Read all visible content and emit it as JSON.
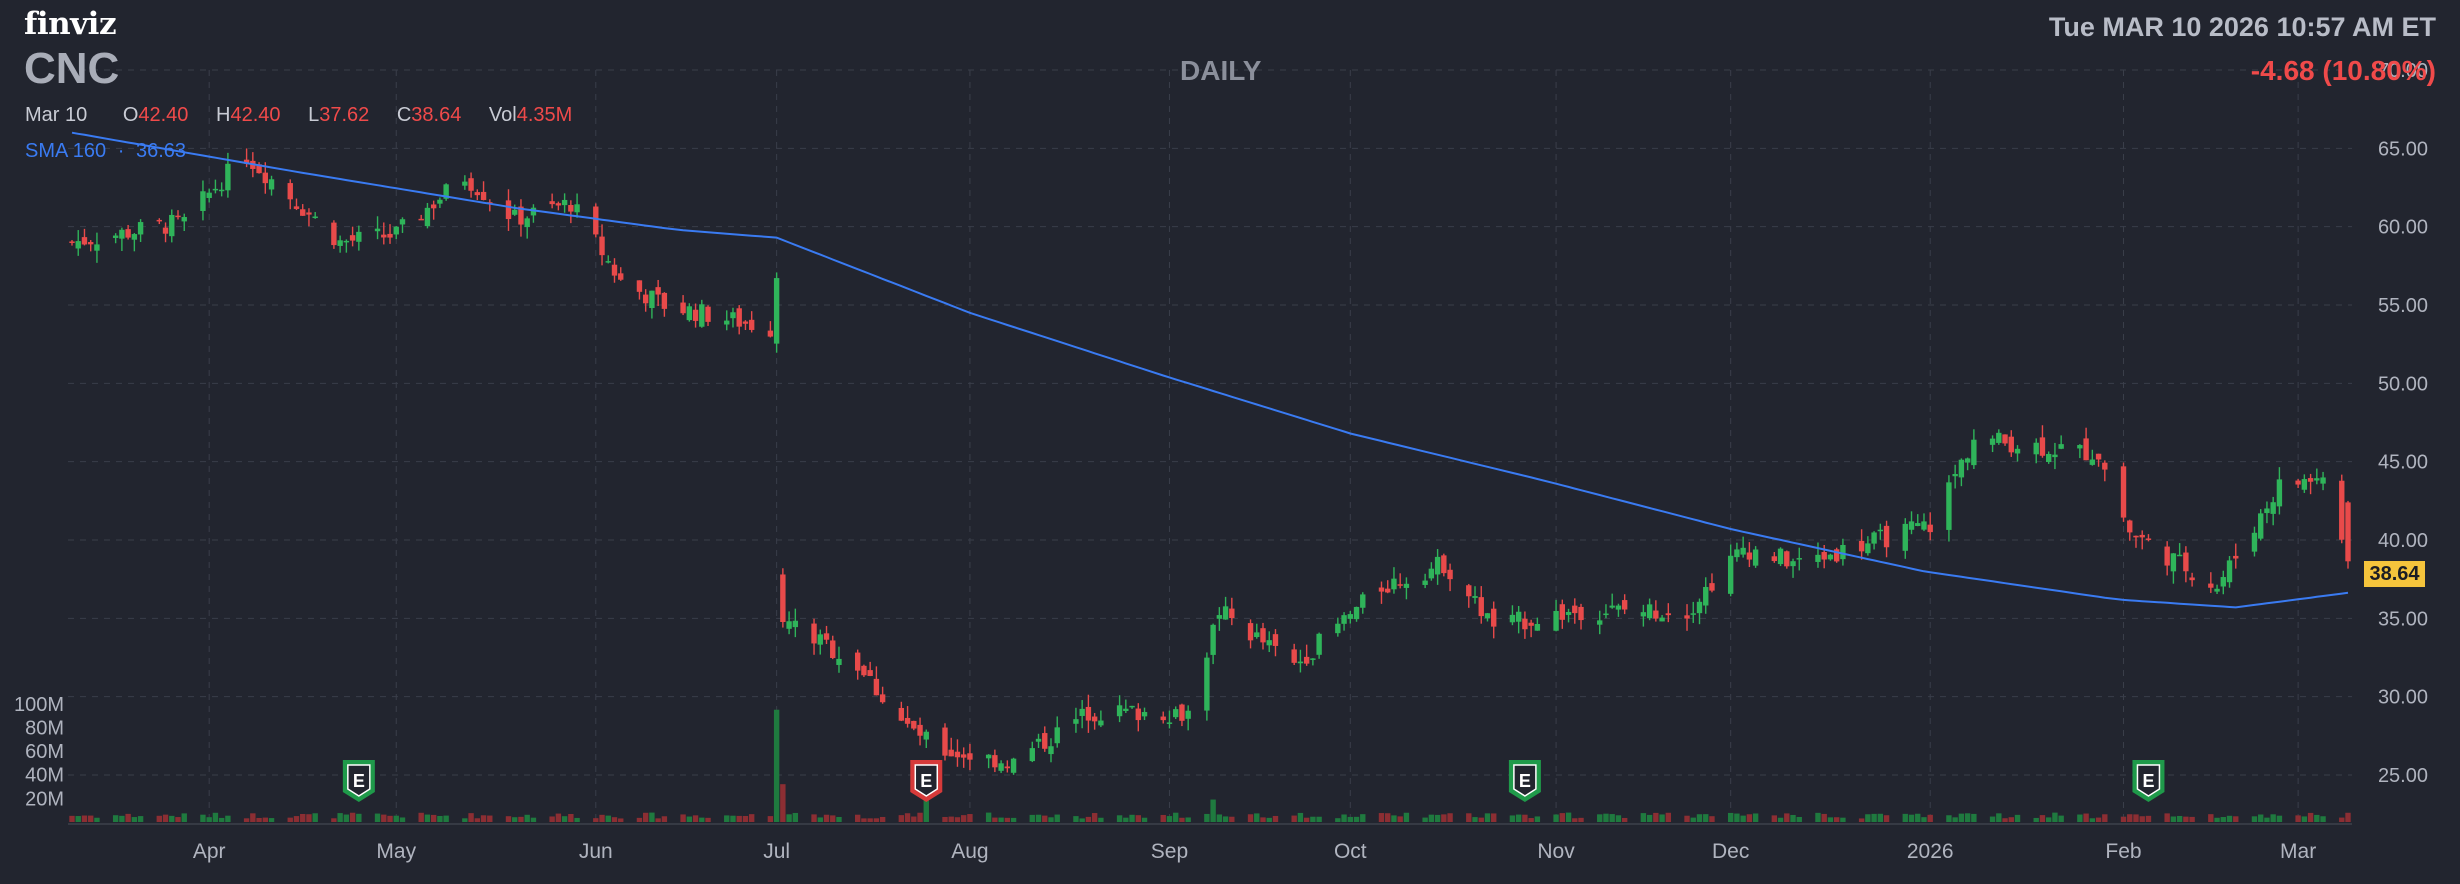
{
  "header": {
    "logo": "finviz",
    "ticker": "CNC",
    "timeframe": "DAILY",
    "datetime": "Tue MAR 10 2026 10:57 AM ET",
    "change": "-4.68 (10.80%)"
  },
  "ohlc": {
    "date": "Mar 10",
    "open_label": "O",
    "open": "42.40",
    "high_label": "H",
    "high": "42.40",
    "low_label": "L",
    "low": "37.62",
    "close_label": "C",
    "close": "38.64",
    "vol_label": "Vol",
    "vol": "4.35M"
  },
  "sma": {
    "label": "SMA 160",
    "sep": "·",
    "value": "36.63"
  },
  "last_price_tag": "38.64",
  "colors": {
    "up": "#2fb45a",
    "down": "#e84a4a",
    "sma": "#3a7bf2",
    "grid": "#3a3e4a",
    "text": "#b0b4bf",
    "volume_up": "#1f7a3f",
    "volume_down": "#8c2e33",
    "tag": "#f5c43c"
  },
  "earnings_marker": {
    "label": "E",
    "icon": "earnings-shield-icon"
  },
  "chart_data": {
    "type": "candlestick",
    "price_axis": {
      "ticks": [
        "70.00",
        "65.00",
        "60.00",
        "55.00",
        "50.00",
        "45.00",
        "40.00",
        "35.00",
        "30.00",
        "25.00"
      ],
      "ylim": [
        22,
        70
      ]
    },
    "volume_axis": {
      "ticks": [
        "100M",
        "80M",
        "60M",
        "40M",
        "20M"
      ],
      "ylim": [
        0,
        110000000
      ]
    },
    "x_labels": [
      "Apr",
      "May",
      "Jun",
      "Jul",
      "Aug",
      "Sep",
      "Oct",
      "Nov",
      "Dec",
      "2026",
      "Feb",
      "Mar"
    ],
    "earnings": [
      {
        "date": "2025-04-25",
        "result": "beat"
      },
      {
        "date": "2025-07-25",
        "result": "miss"
      },
      {
        "date": "2025-10-29",
        "result": "beat"
      },
      {
        "date": "2026-02-06",
        "result": "beat"
      }
    ],
    "key_points": [
      {
        "date": "2025-03-10",
        "close": 59.0
      },
      {
        "date": "2025-03-28",
        "close": 60.3
      },
      {
        "date": "2025-04-03",
        "close": 63.0
      },
      {
        "date": "2025-04-07",
        "close": 64.5
      },
      {
        "date": "2025-04-22",
        "close": 59.0
      },
      {
        "date": "2025-05-01",
        "close": 59.5
      },
      {
        "date": "2025-05-12",
        "close": 63.2
      },
      {
        "date": "2025-05-20",
        "close": 60.5
      },
      {
        "date": "2025-05-29",
        "close": 61.5
      },
      {
        "date": "2025-06-06",
        "close": 56.5
      },
      {
        "date": "2025-06-13",
        "close": 55.0
      },
      {
        "date": "2025-06-30",
        "close": 53.5
      },
      {
        "date": "2025-07-01",
        "close": 57.0
      },
      {
        "date": "2025-07-02",
        "close": 35.0
      },
      {
        "date": "2025-07-14",
        "close": 32.0
      },
      {
        "date": "2025-07-22",
        "close": 28.0
      },
      {
        "date": "2025-07-28",
        "close": 26.5
      },
      {
        "date": "2025-08-08",
        "close": 25.8
      },
      {
        "date": "2025-08-20",
        "close": 29.0
      },
      {
        "date": "2025-09-05",
        "close": 29.0
      },
      {
        "date": "2025-09-10",
        "close": 35.5
      },
      {
        "date": "2025-09-22",
        "close": 32.0
      },
      {
        "date": "2025-10-06",
        "close": 37.0
      },
      {
        "date": "2025-10-16",
        "close": 38.5
      },
      {
        "date": "2025-10-24",
        "close": 34.5
      },
      {
        "date": "2025-11-07",
        "close": 35.5
      },
      {
        "date": "2025-11-24",
        "close": 35.5
      },
      {
        "date": "2025-12-03",
        "close": 39.5
      },
      {
        "date": "2025-12-12",
        "close": 38.5
      },
      {
        "date": "2026-01-02",
        "close": 41.0
      },
      {
        "date": "2026-01-09",
        "close": 46.5
      },
      {
        "date": "2026-01-29",
        "close": 45.5
      },
      {
        "date": "2026-02-03",
        "close": 40.5
      },
      {
        "date": "2026-02-11",
        "close": 38.5
      },
      {
        "date": "2026-02-17",
        "close": 37.0
      },
      {
        "date": "2026-02-27",
        "close": 43.5
      },
      {
        "date": "2026-03-06",
        "close": 44.0
      },
      {
        "date": "2026-03-10",
        "close": 38.64
      }
    ],
    "sma160": [
      {
        "date": "2025-03-10",
        "value": 66.0
      },
      {
        "date": "2025-04-15",
        "value": 63.5
      },
      {
        "date": "2025-05-20",
        "value": 61.2
      },
      {
        "date": "2025-06-15",
        "value": 59.8
      },
      {
        "date": "2025-07-01",
        "value": 59.3
      },
      {
        "date": "2025-08-01",
        "value": 54.5
      },
      {
        "date": "2025-09-01",
        "value": 50.5
      },
      {
        "date": "2025-10-01",
        "value": 46.8
      },
      {
        "date": "2025-11-01",
        "value": 43.8
      },
      {
        "date": "2025-12-01",
        "value": 40.7
      },
      {
        "date": "2026-01-01",
        "value": 38.0
      },
      {
        "date": "2026-02-01",
        "value": 36.2
      },
      {
        "date": "2026-02-20",
        "value": 35.7
      },
      {
        "date": "2026-03-10",
        "value": 36.63
      }
    ],
    "volume_spikes": [
      {
        "date": "2025-07-01",
        "volume": 95000000
      },
      {
        "date": "2025-07-02",
        "volume": 32000000
      },
      {
        "date": "2025-07-25",
        "volume": 22000000
      },
      {
        "date": "2025-09-09",
        "volume": 19000000
      }
    ],
    "last_close": 38.64
  }
}
